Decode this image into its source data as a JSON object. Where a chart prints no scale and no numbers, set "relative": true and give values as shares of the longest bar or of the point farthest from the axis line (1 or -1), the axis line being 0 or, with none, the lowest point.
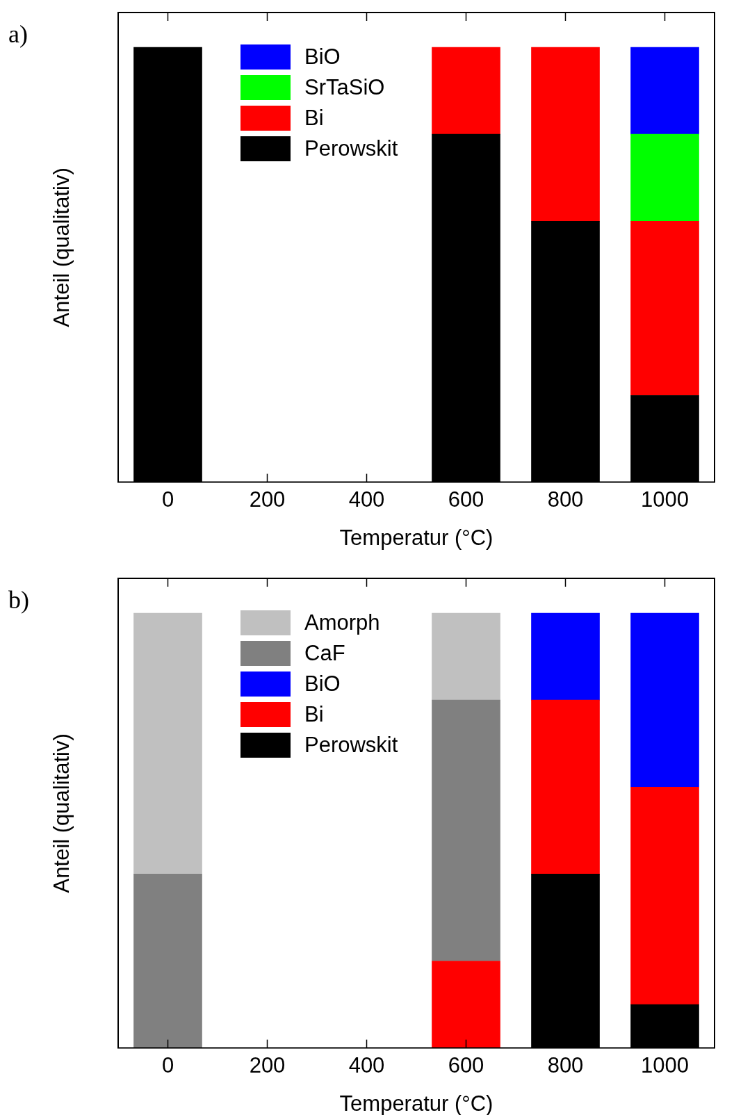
{
  "chart_data": [
    {
      "type": "bar",
      "stacked": true,
      "relative": true,
      "xlabel": "Temperatur (°C)",
      "ylabel": "Anteil (qualitativ)",
      "annotations": [
        "a)"
      ],
      "x": [
        0,
        600,
        800,
        1000
      ],
      "xlim": [
        -100,
        1100
      ],
      "xticks": [
        0,
        200,
        400,
        600,
        800,
        1000
      ],
      "legend": "top left",
      "series": [
        {
          "name": "Perowskit",
          "color": "#000000",
          "values": [
            1,
            0.8,
            0.6,
            0.2
          ]
        },
        {
          "name": "Bi",
          "color": "#ff0000",
          "values": [
            null,
            0.2,
            0.4,
            0.4
          ]
        },
        {
          "name": "SrTaSiO",
          "color": "#00ff00",
          "values": [
            null,
            null,
            null,
            0.2
          ]
        },
        {
          "name": "BiO",
          "color": "#0000ff",
          "values": [
            null,
            null,
            null,
            0.2
          ]
        }
      ]
    },
    {
      "type": "bar",
      "stacked": true,
      "relative": true,
      "xlabel": "Temperatur (°C)",
      "ylabel": "Anteil (qualitativ)",
      "annotations": [
        "b)"
      ],
      "x": [
        0,
        600,
        800,
        1000
      ],
      "xlim": [
        -100,
        1100
      ],
      "xticks": [
        0,
        200,
        400,
        600,
        800,
        1000
      ],
      "legend": "top left",
      "series": [
        {
          "name": "Perowskit",
          "color": "#000000",
          "values": [
            null,
            null,
            0.4,
            0.1
          ]
        },
        {
          "name": "Bi",
          "color": "#ff0000",
          "values": [
            null,
            0.2,
            0.4,
            0.5
          ]
        },
        {
          "name": "BiO",
          "color": "#0000ff",
          "values": [
            null,
            null,
            0.2,
            0.4
          ]
        },
        {
          "name": "CaF",
          "color": "#808080",
          "values": [
            0.4,
            0.6,
            null,
            null
          ]
        },
        {
          "name": "Amorph",
          "color": "#c0c0c0",
          "values": [
            0.6,
            0.2,
            null,
            null
          ]
        }
      ]
    }
  ]
}
